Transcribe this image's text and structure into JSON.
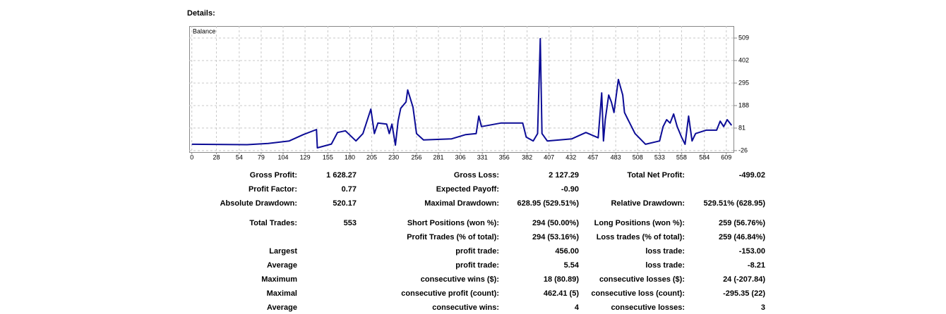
{
  "header": {
    "title": "Details:"
  },
  "chart_data": {
    "type": "line",
    "x": [
      0,
      63,
      87,
      111,
      127,
      142,
      143,
      159,
      166,
      175,
      187,
      195,
      204,
      208,
      212,
      222,
      225,
      228,
      232,
      235,
      238,
      244,
      246,
      252,
      256,
      264,
      296,
      312,
      324,
      327,
      330,
      352,
      377,
      381,
      389,
      394,
      397,
      399,
      405,
      433,
      449,
      463,
      467,
      469,
      471,
      475,
      478,
      481,
      486,
      491,
      493,
      497,
      505,
      517,
      533,
      537,
      541,
      545,
      549,
      553,
      558,
      562,
      566,
      570,
      574,
      586,
      598,
      602,
      606,
      610,
      615
    ],
    "series": [
      {
        "name": "Balance",
        "color": "#0c0c96",
        "values": [
          4,
          2,
          8,
          20,
          50,
          74,
          -13,
          5,
          60,
          68,
          20,
          55,
          171,
          55,
          105,
          100,
          55,
          100,
          0,
          115,
          175,
          205,
          262,
          180,
          55,
          25,
          30,
          50,
          55,
          138,
          88,
          105,
          105,
          38,
          20,
          55,
          506,
          55,
          20,
          30,
          60,
          35,
          248,
          20,
          120,
          238,
          205,
          155,
          312,
          238,
          155,
          121,
          55,
          4,
          20,
          88,
          121,
          105,
          148,
          88,
          38,
          4,
          138,
          20,
          55,
          71,
          71,
          114,
          88,
          121,
          94
        ]
      }
    ],
    "xlim": [
      -3,
      618
    ],
    "xticks": [
      0,
      28,
      54,
      79,
      104,
      129,
      155,
      180,
      205,
      230,
      256,
      281,
      306,
      331,
      356,
      382,
      407,
      432,
      457,
      483,
      508,
      533,
      558,
      584,
      609
    ],
    "ylim": [
      -33,
      566
    ],
    "yticks": [
      -26,
      81,
      188,
      295,
      402,
      509
    ],
    "grid": true
  },
  "table": {
    "rows": [
      [
        "Gross Profit:",
        "1 628.27",
        "Gross Loss:",
        "2 127.29",
        "Total Net Profit:",
        "-499.02"
      ],
      [
        "Profit Factor:",
        "0.77",
        "Expected Payoff:",
        "-0.90",
        null,
        null
      ],
      [
        "Absolute Drawdown:",
        "520.17",
        "Maximal Drawdown:",
        "628.95 (529.51%)",
        "Relative Drawdown:",
        "529.51% (628.95)"
      ],
      [
        "Total Trades:",
        "553",
        "Short Positions (won %):",
        "294 (50.00%)",
        "Long Positions (won %):",
        "259 (56.76%)"
      ],
      [
        null,
        null,
        "Profit Trades (% of total):",
        "294 (53.16%)",
        "Loss trades (% of total):",
        "259 (46.84%)"
      ],
      [
        "Largest",
        null,
        "profit trade:",
        "456.00",
        "loss trade:",
        "-153.00"
      ],
      [
        "Average",
        null,
        "profit trade:",
        "5.54",
        "loss trade:",
        "-8.21"
      ],
      [
        "Maximum",
        null,
        "consecutive wins ($):",
        "18 (80.89)",
        "consecutive losses ($):",
        "24 (-207.84)"
      ],
      [
        "Maximal",
        null,
        "consecutive profit (count):",
        "462.41 (5)",
        "consecutive loss (count):",
        "-295.35 (22)"
      ],
      [
        "Average",
        null,
        "consecutive wins:",
        "4",
        "consecutive losses:",
        "3"
      ]
    ]
  }
}
